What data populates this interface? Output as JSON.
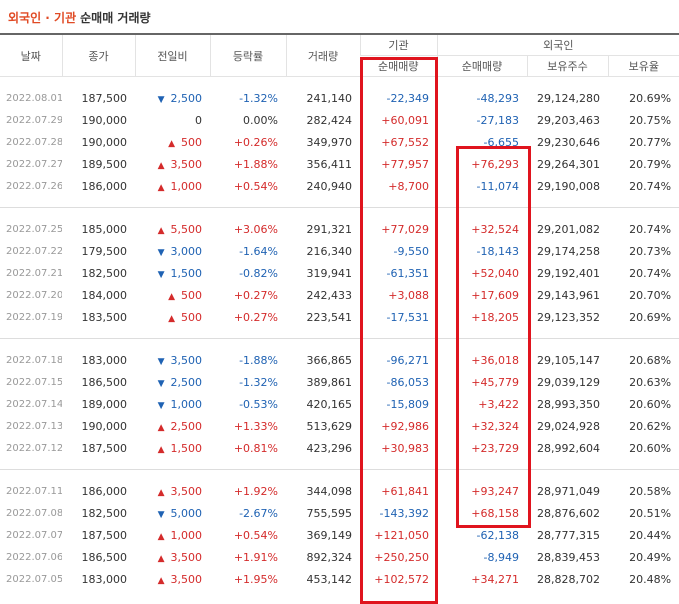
{
  "header": {
    "title_highlight": "외국인 · 기관",
    "title_rest": "순매매 거래량"
  },
  "table": {
    "columns": [
      "날짜",
      "종가",
      "전일비",
      "등락률",
      "거래량"
    ],
    "groups": [
      {
        "label": "기관",
        "sub": [
          "순매매량"
        ]
      },
      {
        "label": "외국인",
        "sub": [
          "순매매량",
          "보유주수",
          "보유율"
        ]
      }
    ],
    "row_groups": [
      [
        {
          "date": "2022.08.01",
          "close": "187,500",
          "direction": "down",
          "change": "2,500",
          "rate": "-1.32%",
          "volume": "241,140",
          "institution": "-22,349",
          "foreign": "-48,293",
          "holdings": "29,124,280",
          "ratio": "20.69%"
        },
        {
          "date": "2022.07.29",
          "close": "190,000",
          "direction": "none",
          "change": "0",
          "rate": "0.00%",
          "volume": "282,424",
          "institution": "+60,091",
          "foreign": "-27,183",
          "holdings": "29,203,463",
          "ratio": "20.75%"
        },
        {
          "date": "2022.07.28",
          "close": "190,000",
          "direction": "up",
          "change": "500",
          "rate": "+0.26%",
          "volume": "349,970",
          "institution": "+67,552",
          "foreign": "-6,655",
          "holdings": "29,230,646",
          "ratio": "20.77%"
        },
        {
          "date": "2022.07.27",
          "close": "189,500",
          "direction": "up",
          "change": "3,500",
          "rate": "+1.88%",
          "volume": "356,411",
          "institution": "+77,957",
          "foreign": "+76,293",
          "holdings": "29,264,301",
          "ratio": "20.79%"
        },
        {
          "date": "2022.07.26",
          "close": "186,000",
          "direction": "up",
          "change": "1,000",
          "rate": "+0.54%",
          "volume": "240,940",
          "institution": "+8,700",
          "foreign": "-11,074",
          "holdings": "29,190,008",
          "ratio": "20.74%"
        }
      ],
      [
        {
          "date": "2022.07.25",
          "close": "185,000",
          "direction": "up",
          "change": "5,500",
          "rate": "+3.06%",
          "volume": "291,321",
          "institution": "+77,029",
          "foreign": "+32,524",
          "holdings": "29,201,082",
          "ratio": "20.74%"
        },
        {
          "date": "2022.07.22",
          "close": "179,500",
          "direction": "down",
          "change": "3,000",
          "rate": "-1.64%",
          "volume": "216,340",
          "institution": "-9,550",
          "foreign": "-18,143",
          "holdings": "29,174,258",
          "ratio": "20.73%"
        },
        {
          "date": "2022.07.21",
          "close": "182,500",
          "direction": "down",
          "change": "1,500",
          "rate": "-0.82%",
          "volume": "319,941",
          "institution": "-61,351",
          "foreign": "+52,040",
          "holdings": "29,192,401",
          "ratio": "20.74%"
        },
        {
          "date": "2022.07.20",
          "close": "184,000",
          "direction": "up",
          "change": "500",
          "rate": "+0.27%",
          "volume": "242,433",
          "institution": "+3,088",
          "foreign": "+17,609",
          "holdings": "29,143,961",
          "ratio": "20.70%"
        },
        {
          "date": "2022.07.19",
          "close": "183,500",
          "direction": "up",
          "change": "500",
          "rate": "+0.27%",
          "volume": "223,541",
          "institution": "-17,531",
          "foreign": "+18,205",
          "holdings": "29,123,352",
          "ratio": "20.69%"
        }
      ],
      [
        {
          "date": "2022.07.18",
          "close": "183,000",
          "direction": "down",
          "change": "3,500",
          "rate": "-1.88%",
          "volume": "366,865",
          "institution": "-96,271",
          "foreign": "+36,018",
          "holdings": "29,105,147",
          "ratio": "20.68%"
        },
        {
          "date": "2022.07.15",
          "close": "186,500",
          "direction": "down",
          "change": "2,500",
          "rate": "-1.32%",
          "volume": "389,861",
          "institution": "-86,053",
          "foreign": "+45,779",
          "holdings": "29,039,129",
          "ratio": "20.63%"
        },
        {
          "date": "2022.07.14",
          "close": "189,000",
          "direction": "down",
          "change": "1,000",
          "rate": "-0.53%",
          "volume": "420,165",
          "institution": "-15,809",
          "foreign": "+3,422",
          "holdings": "28,993,350",
          "ratio": "20.60%"
        },
        {
          "date": "2022.07.13",
          "close": "190,000",
          "direction": "up",
          "change": "2,500",
          "rate": "+1.33%",
          "volume": "513,629",
          "institution": "+92,986",
          "foreign": "+32,324",
          "holdings": "29,024,928",
          "ratio": "20.62%"
        },
        {
          "date": "2022.07.12",
          "close": "187,500",
          "direction": "up",
          "change": "1,500",
          "rate": "+0.81%",
          "volume": "423,296",
          "institution": "+30,983",
          "foreign": "+23,729",
          "holdings": "28,992,604",
          "ratio": "20.60%"
        }
      ],
      [
        {
          "date": "2022.07.11",
          "close": "186,000",
          "direction": "up",
          "change": "3,500",
          "rate": "+1.92%",
          "volume": "344,098",
          "institution": "+61,841",
          "foreign": "+93,247",
          "holdings": "28,971,049",
          "ratio": "20.58%"
        },
        {
          "date": "2022.07.08",
          "close": "182,500",
          "direction": "down",
          "change": "5,000",
          "rate": "-2.67%",
          "volume": "755,595",
          "institution": "-143,392",
          "foreign": "+68,158",
          "holdings": "28,876,602",
          "ratio": "20.51%"
        },
        {
          "date": "2022.07.07",
          "close": "187,500",
          "direction": "up",
          "change": "1,000",
          "rate": "+0.54%",
          "volume": "369,149",
          "institution": "+121,050",
          "foreign": "-62,138",
          "holdings": "28,777,315",
          "ratio": "20.44%"
        },
        {
          "date": "2022.07.06",
          "close": "186,500",
          "direction": "up",
          "change": "3,500",
          "rate": "+1.91%",
          "volume": "892,324",
          "institution": "+250,250",
          "foreign": "-8,949",
          "holdings": "28,839,453",
          "ratio": "20.49%"
        },
        {
          "date": "2022.07.05",
          "close": "183,000",
          "direction": "up",
          "change": "3,500",
          "rate": "+1.95%",
          "volume": "453,142",
          "institution": "+102,572",
          "foreign": "+34,271",
          "holdings": "28,828,702",
          "ratio": "20.48%"
        }
      ]
    ]
  }
}
